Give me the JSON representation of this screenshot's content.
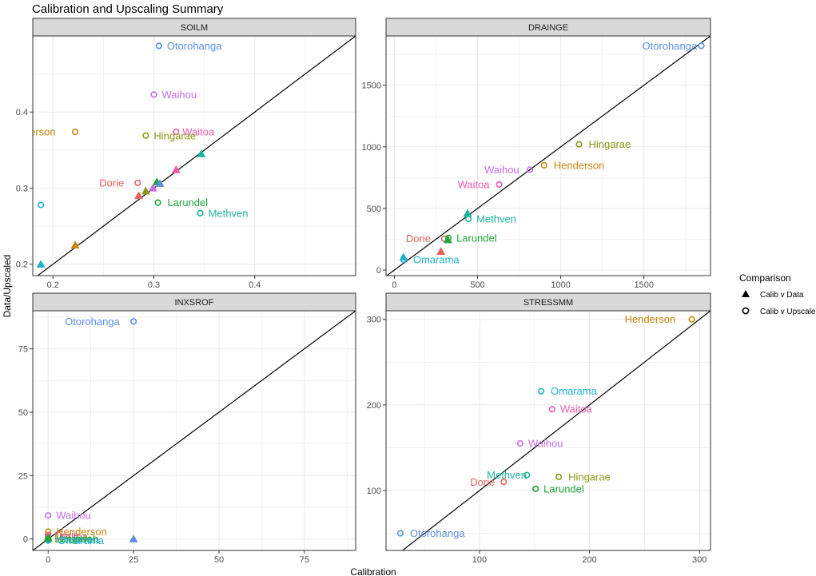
{
  "chart_data": [
    {
      "type": "scatter",
      "panel": "SOILM",
      "xlim": [
        0.18,
        0.5
      ],
      "ylim": [
        0.185,
        0.5
      ],
      "xticks": [
        0.2,
        0.3,
        0.4
      ],
      "xtick_labels": [
        "0.2",
        "0.3",
        "0.4"
      ],
      "yticks": [
        0.2,
        0.3,
        0.4
      ],
      "ytick_labels": [
        "0.2",
        "0.3",
        "0.4"
      ],
      "points": [
        {
          "site": "Otorohanga",
          "comparison": "Calib v Upscaled",
          "x": 0.305,
          "y": 0.487,
          "label": "Otorohanga"
        },
        {
          "site": "Waihou",
          "comparison": "Calib v Upscaled",
          "x": 0.3,
          "y": 0.423,
          "label": "Waihou"
        },
        {
          "site": "Henderson",
          "comparison": "Calib v Upscaled",
          "x": 0.222,
          "y": 0.374,
          "label": "Henderson"
        },
        {
          "site": "Waitoa",
          "comparison": "Calib v Upscaled",
          "x": 0.322,
          "y": 0.374,
          "label": "Waitoa"
        },
        {
          "site": "Hingarae",
          "comparison": "Calib v Upscaled",
          "x": 0.292,
          "y": 0.369,
          "label": "Hingarae"
        },
        {
          "site": "Dorie",
          "comparison": "Calib v Upscaled",
          "x": 0.284,
          "y": 0.307,
          "label": "Dorie"
        },
        {
          "site": "Omarama",
          "comparison": "Calib v Upscaled",
          "x": 0.188,
          "y": 0.278,
          "label": "Omarama"
        },
        {
          "site": "Larundel",
          "comparison": "Calib v Upscaled",
          "x": 0.304,
          "y": 0.281,
          "label": "Larundel"
        },
        {
          "site": "Methven",
          "comparison": "Calib v Upscaled",
          "x": 0.346,
          "y": 0.267,
          "label": "Methven"
        },
        {
          "site": "Methven",
          "comparison": "Calib v Data",
          "x": 0.347,
          "y": 0.345,
          "label": ""
        },
        {
          "site": "Waitoa",
          "comparison": "Calib v Data",
          "x": 0.322,
          "y": 0.324,
          "label": ""
        },
        {
          "site": "Larundel",
          "comparison": "Calib v Data",
          "x": 0.303,
          "y": 0.308,
          "label": ""
        },
        {
          "site": "Otorohanga",
          "comparison": "Calib v Data",
          "x": 0.306,
          "y": 0.306,
          "label": ""
        },
        {
          "site": "Waihou",
          "comparison": "Calib v Data",
          "x": 0.299,
          "y": 0.3,
          "label": ""
        },
        {
          "site": "Hingarae",
          "comparison": "Calib v Data",
          "x": 0.292,
          "y": 0.296,
          "label": ""
        },
        {
          "site": "Dorie",
          "comparison": "Calib v Data",
          "x": 0.285,
          "y": 0.29,
          "label": ""
        },
        {
          "site": "Henderson",
          "comparison": "Calib v Data",
          "x": 0.222,
          "y": 0.225,
          "label": ""
        },
        {
          "site": "Omarama",
          "comparison": "Calib v Data",
          "x": 0.188,
          "y": 0.2,
          "label": ""
        }
      ]
    },
    {
      "type": "scatter",
      "panel": "DRAINGE",
      "xlim": [
        -50,
        1900
      ],
      "ylim": [
        -45,
        1900
      ],
      "xticks": [
        0,
        500,
        1000,
        1500
      ],
      "xtick_labels": [
        "0",
        "500",
        "1000",
        "1500"
      ],
      "yticks": [
        0,
        500,
        1000,
        1500
      ],
      "ytick_labels": [
        "0",
        "500",
        "1000",
        "1500"
      ],
      "points": [
        {
          "site": "Otorohanga",
          "comparison": "Calib v Upscaled",
          "x": 1845,
          "y": 1820,
          "label": "Otorohanga"
        },
        {
          "site": "Hingarae",
          "comparison": "Calib v Upscaled",
          "x": 1110,
          "y": 1020,
          "label": "Hingarae"
        },
        {
          "site": "Henderson",
          "comparison": "Calib v Upscaled",
          "x": 900,
          "y": 850,
          "label": "Henderson"
        },
        {
          "site": "Waihou",
          "comparison": "Calib v Upscaled",
          "x": 815,
          "y": 815,
          "label": "Waihou"
        },
        {
          "site": "Waitoa",
          "comparison": "Calib v Upscaled",
          "x": 630,
          "y": 695,
          "label": "Waitoa"
        },
        {
          "site": "Methven",
          "comparison": "Calib v Upscaled",
          "x": 445,
          "y": 415,
          "label": "Methven"
        },
        {
          "site": "Dorie",
          "comparison": "Calib v Upscaled",
          "x": 300,
          "y": 255,
          "label": "Dorie"
        },
        {
          "site": "Larundel",
          "comparison": "Calib v Upscaled",
          "x": 325,
          "y": 260,
          "label": "Larundel"
        },
        {
          "site": "Omarama",
          "comparison": "Calib v Upscaled",
          "x": 55,
          "y": 85,
          "label": "Omarama"
        },
        {
          "site": "Methven",
          "comparison": "Calib v Data",
          "x": 440,
          "y": 460,
          "label": ""
        },
        {
          "site": "Larundel",
          "comparison": "Calib v Data",
          "x": 322,
          "y": 245,
          "label": ""
        },
        {
          "site": "Dorie",
          "comparison": "Calib v Data",
          "x": 280,
          "y": 150,
          "label": ""
        },
        {
          "site": "Omarama",
          "comparison": "Calib v Data",
          "x": 55,
          "y": 105,
          "label": ""
        }
      ]
    },
    {
      "type": "scatter",
      "panel": "INXSROF",
      "xlim": [
        -4.5,
        90
      ],
      "ylim": [
        -4.5,
        90
      ],
      "xticks": [
        0,
        25,
        50,
        75
      ],
      "xtick_labels": [
        "0",
        "25",
        "50",
        "75"
      ],
      "yticks": [
        0,
        25,
        50,
        75
      ],
      "ytick_labels": [
        "0",
        "25",
        "50",
        "75"
      ],
      "points": [
        {
          "site": "Otorohanga",
          "comparison": "Calib v Upscaled",
          "x": 25,
          "y": 85.8,
          "label": "Otorohanga"
        },
        {
          "site": "Waihou",
          "comparison": "Calib v Upscaled",
          "x": 0,
          "y": 9.3,
          "label": "Waihou"
        },
        {
          "site": "Henderson",
          "comparison": "Calib v Upscaled",
          "x": 0,
          "y": 2.9,
          "label": "Henderson"
        },
        {
          "site": "Dorie",
          "comparison": "Calib v Upscaled",
          "x": 0,
          "y": 1.5,
          "label": "Dorie"
        },
        {
          "site": "Waitoa",
          "comparison": "Calib v Upscaled",
          "x": 0,
          "y": 0.9,
          "label": "Waitoa"
        },
        {
          "site": "Hingarae",
          "comparison": "Calib v Upscaled",
          "x": 0,
          "y": 0.3,
          "label": "Hingarae"
        },
        {
          "site": "Larundel",
          "comparison": "Calib v Upscaled",
          "x": 0,
          "y": 0,
          "label": "Larundel"
        },
        {
          "site": "Methven",
          "comparison": "Calib v Upscaled",
          "x": 0,
          "y": -0.3,
          "label": "Methven"
        },
        {
          "site": "Omarama",
          "comparison": "Calib v Upscaled",
          "x": 0,
          "y": -0.6,
          "label": "Omarama"
        },
        {
          "site": "Otorohanga",
          "comparison": "Calib v Data",
          "x": 25,
          "y": 0,
          "label": ""
        },
        {
          "site": "Larundel",
          "comparison": "Calib v Data",
          "x": 0,
          "y": 0.4,
          "label": ""
        }
      ]
    },
    {
      "type": "scatter",
      "panel": "STRESSMM",
      "xlim": [
        15,
        310
      ],
      "ylim": [
        30,
        310
      ],
      "xticks": [
        100,
        200,
        300
      ],
      "xtick_labels": [
        "100",
        "200",
        "300"
      ],
      "yticks": [
        100,
        200,
        300
      ],
      "ytick_labels": [
        "100",
        "200",
        "300"
      ],
      "points": [
        {
          "site": "Henderson",
          "comparison": "Calib v Upscaled",
          "x": 293,
          "y": 300,
          "label": "Henderson"
        },
        {
          "site": "Omarama",
          "comparison": "Calib v Upscaled",
          "x": 156,
          "y": 216,
          "label": "Omarama"
        },
        {
          "site": "Waitoa",
          "comparison": "Calib v Upscaled",
          "x": 166,
          "y": 195,
          "label": "Waitoa"
        },
        {
          "site": "Waihou",
          "comparison": "Calib v Upscaled",
          "x": 137,
          "y": 155,
          "label": "Waihou"
        },
        {
          "site": "Methven",
          "comparison": "Calib v Upscaled",
          "x": 143,
          "y": 118,
          "label": "Methven"
        },
        {
          "site": "Hingarae",
          "comparison": "Calib v Upscaled",
          "x": 172,
          "y": 116,
          "label": "Hingarae"
        },
        {
          "site": "Dorie",
          "comparison": "Calib v Upscaled",
          "x": 122,
          "y": 110,
          "label": "Dorie"
        },
        {
          "site": "Larundel",
          "comparison": "Calib v Upscaled",
          "x": 151,
          "y": 102,
          "label": "Larundel"
        },
        {
          "site": "Otorohanga",
          "comparison": "Calib v Upscaled",
          "x": 28,
          "y": 50,
          "label": "Otorohanga"
        }
      ]
    }
  ],
  "figure": {
    "title": "Calibration and Upscaling Summary",
    "xlabel": "Calibration",
    "ylabel": "Data/Upscaled",
    "reference_line": "y = x",
    "legend": {
      "title": "Comparison",
      "position": "right",
      "entries": [
        {
          "label": "Calib v Data",
          "shape": "triangle"
        },
        {
          "label": "Calib v Upscaled",
          "shape": "circle"
        }
      ]
    }
  },
  "colors": {
    "Dorie": "#e5625e",
    "Henderson": "#c8860a",
    "Hingarae": "#8a9a14",
    "Larundel": "#22a63a",
    "Methven": "#1cb59a",
    "Omarama": "#1fb3d0",
    "Otorohanga": "#5c8fe6",
    "Waihou": "#c86ee8",
    "Waitoa": "#eb5aa8",
    "panel_bg": "#ffffff",
    "grid": "#ebebeb",
    "strip_bg": "#d9d9d9"
  }
}
